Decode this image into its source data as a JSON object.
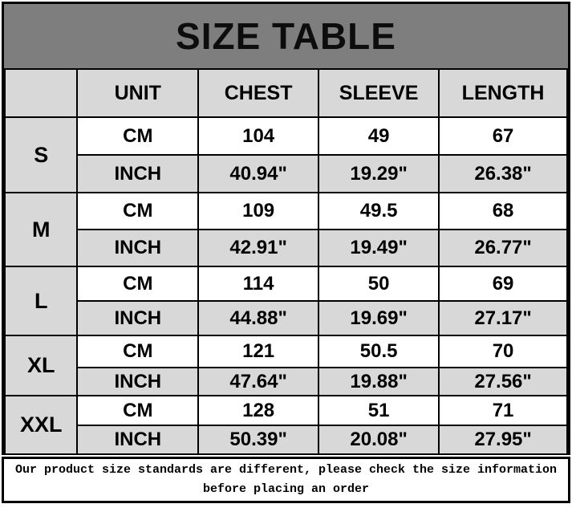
{
  "chart_data": {
    "type": "table",
    "title": "SIZE TABLE",
    "columns": [
      "",
      "UNIT",
      "CHEST",
      "SLEEVE",
      "LENGTH"
    ],
    "rows": [
      [
        "S",
        "CM",
        "104",
        "49",
        "67"
      ],
      [
        "S",
        "INCH",
        "40.94\"",
        "19.29\"",
        "26.38\""
      ],
      [
        "M",
        "CM",
        "109",
        "49.5",
        "68"
      ],
      [
        "M",
        "INCH",
        "42.91\"",
        "19.49\"",
        "26.77\""
      ],
      [
        "L",
        "CM",
        "114",
        "50",
        "69"
      ],
      [
        "L",
        "INCH",
        "44.88\"",
        "19.69\"",
        "27.17\""
      ],
      [
        "XL",
        "CM",
        "121",
        "50.5",
        "70"
      ],
      [
        "XL",
        "INCH",
        "47.64\"",
        "19.88\"",
        "27.56\""
      ],
      [
        "XXL",
        "CM",
        "128",
        "51",
        "71"
      ],
      [
        "XXL",
        "INCH",
        "50.39\"",
        "20.08\"",
        "27.95\""
      ]
    ],
    "layout_hints": {
      "row_groups": [
        "S",
        "M",
        "L",
        "XL",
        "XXL"
      ],
      "sub_rows_per_group": [
        "CM",
        "INCH"
      ],
      "grid": "on",
      "diagonal_split_corner_cell": true
    }
  },
  "note": {
    "line1": "Our product size standards are different, please check the size information",
    "line2": "before placing an order"
  },
  "colors": {
    "title_bg": "#7e7e7e",
    "shaded_cell_bg": "#d8d8d8",
    "cell_bg": "#ffffff",
    "border": "#000000",
    "text": "#000000"
  }
}
